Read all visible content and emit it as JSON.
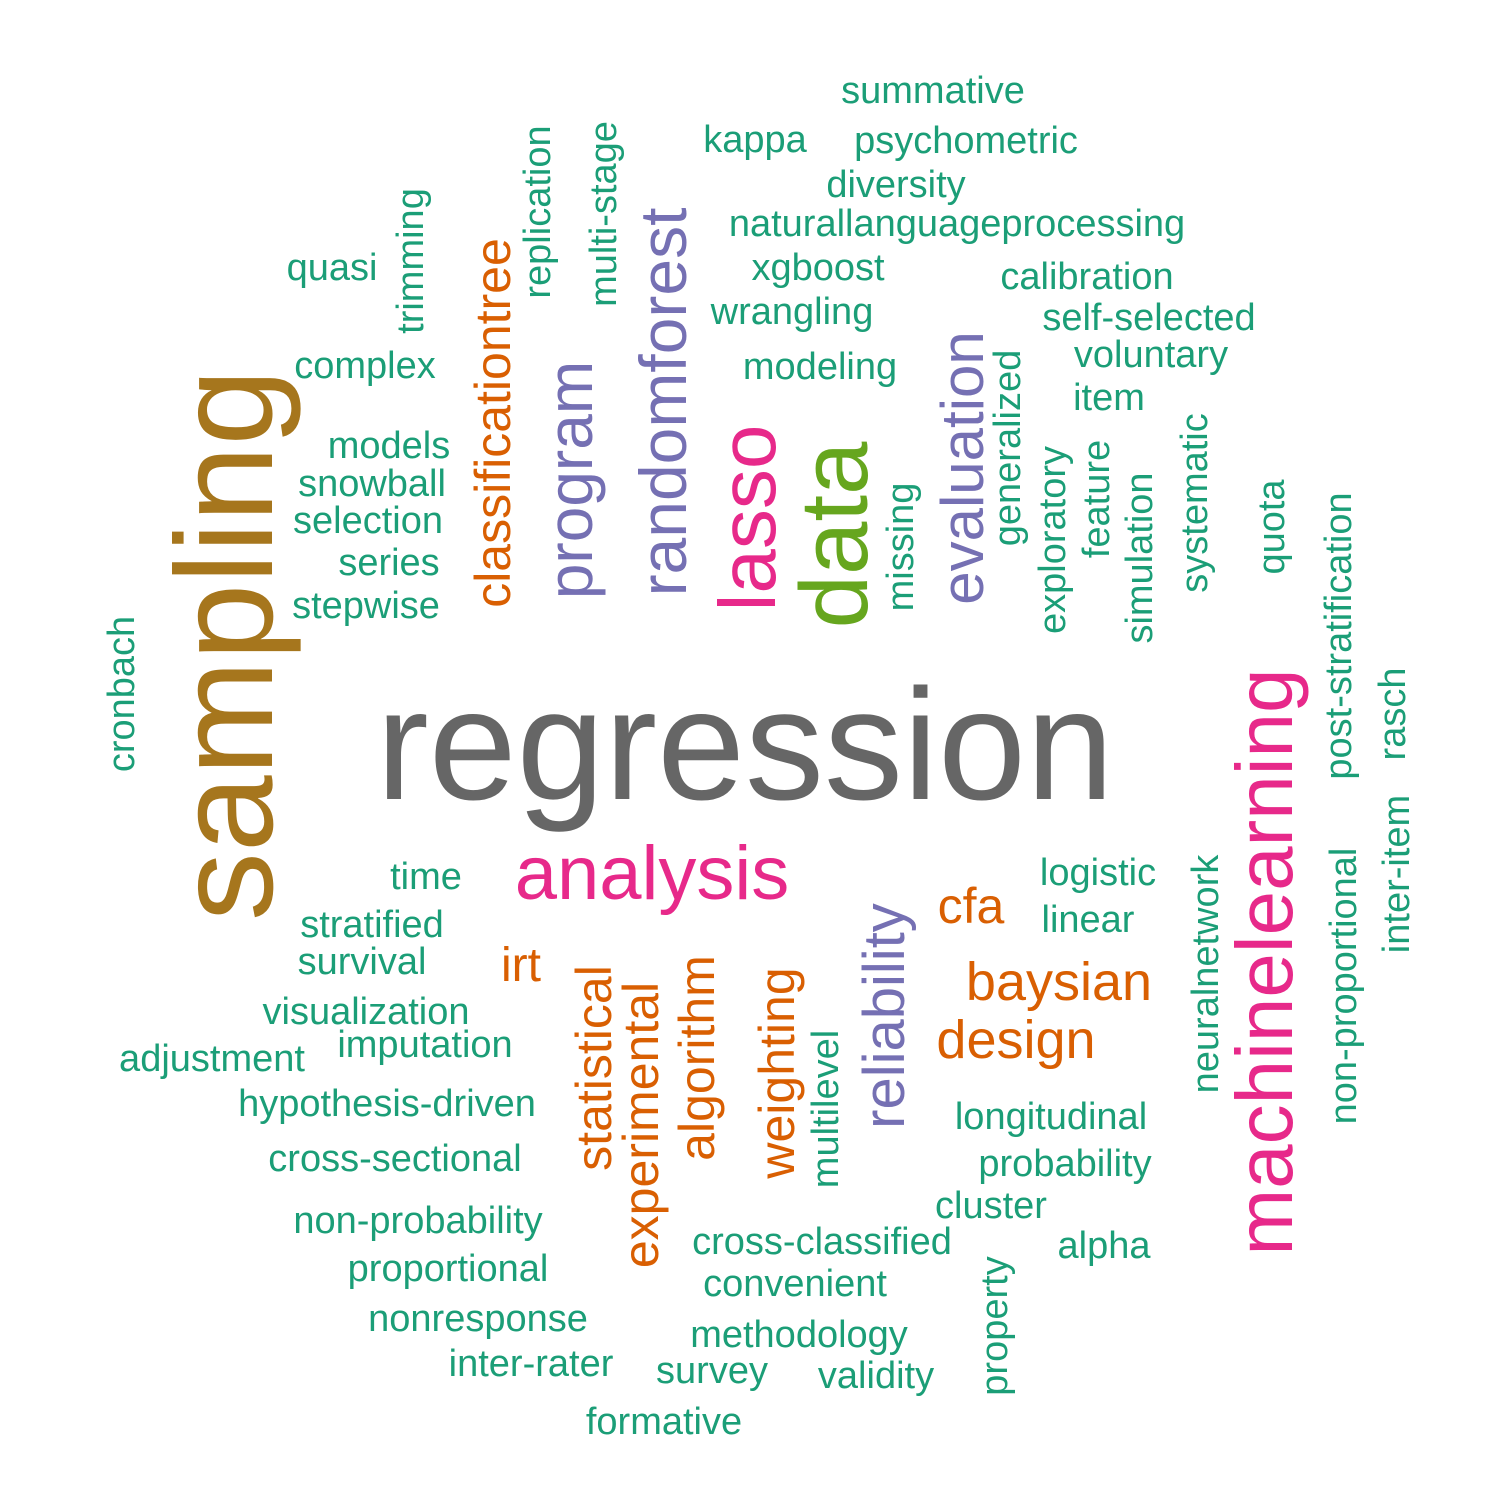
{
  "colors": {
    "teal": "#1b9e77",
    "orange": "#d95f02",
    "purple": "#7570b3",
    "pink": "#e7298a",
    "green": "#66a61e",
    "mustard": "#a6761d",
    "grey": "#666666"
  },
  "words": [
    {
      "text": "regression",
      "color": "grey"
    },
    {
      "text": "sampling",
      "color": "mustard"
    },
    {
      "text": "data",
      "color": "green"
    },
    {
      "text": "machinelearning",
      "color": "pink"
    },
    {
      "text": "lasso",
      "color": "pink"
    },
    {
      "text": "analysis",
      "color": "pink"
    },
    {
      "text": "randomforest",
      "color": "purple"
    },
    {
      "text": "program",
      "color": "purple"
    },
    {
      "text": "evaluation",
      "color": "purple"
    },
    {
      "text": "reliability",
      "color": "purple"
    },
    {
      "text": "classificationtree",
      "color": "orange"
    },
    {
      "text": "baysian",
      "color": "orange"
    },
    {
      "text": "design",
      "color": "orange"
    },
    {
      "text": "statistical",
      "color": "orange"
    },
    {
      "text": "experimental",
      "color": "orange"
    },
    {
      "text": "algorithm",
      "color": "orange"
    },
    {
      "text": "weighting",
      "color": "orange"
    },
    {
      "text": "cfa",
      "color": "orange"
    },
    {
      "text": "irt",
      "color": "orange"
    },
    {
      "text": "summative",
      "color": "teal"
    },
    {
      "text": "kappa",
      "color": "teal"
    },
    {
      "text": "psychometric",
      "color": "teal"
    },
    {
      "text": "diversity",
      "color": "teal"
    },
    {
      "text": "naturallanguageprocessing",
      "color": "teal"
    },
    {
      "text": "xgboost",
      "color": "teal"
    },
    {
      "text": "calibration",
      "color": "teal"
    },
    {
      "text": "wrangling",
      "color": "teal"
    },
    {
      "text": "self-selected",
      "color": "teal"
    },
    {
      "text": "voluntary",
      "color": "teal"
    },
    {
      "text": "modeling",
      "color": "teal"
    },
    {
      "text": "item",
      "color": "teal"
    },
    {
      "text": "quasi",
      "color": "teal"
    },
    {
      "text": "complex",
      "color": "teal"
    },
    {
      "text": "models",
      "color": "teal"
    },
    {
      "text": "snowball",
      "color": "teal"
    },
    {
      "text": "selection",
      "color": "teal"
    },
    {
      "text": "series",
      "color": "teal"
    },
    {
      "text": "stepwise",
      "color": "teal"
    },
    {
      "text": "trimming",
      "color": "teal"
    },
    {
      "text": "replication",
      "color": "teal"
    },
    {
      "text": "multi-stage",
      "color": "teal"
    },
    {
      "text": "generalized",
      "color": "teal"
    },
    {
      "text": "missing",
      "color": "teal"
    },
    {
      "text": "exploratory",
      "color": "teal"
    },
    {
      "text": "feature",
      "color": "teal"
    },
    {
      "text": "simulation",
      "color": "teal"
    },
    {
      "text": "systematic",
      "color": "teal"
    },
    {
      "text": "quota",
      "color": "teal"
    },
    {
      "text": "post-stratification",
      "color": "teal"
    },
    {
      "text": "rasch",
      "color": "teal"
    },
    {
      "text": "cronbach",
      "color": "teal"
    },
    {
      "text": "inter-item",
      "color": "teal"
    },
    {
      "text": "non-proportional",
      "color": "teal"
    },
    {
      "text": "neuralnetwork",
      "color": "teal"
    },
    {
      "text": "logistic",
      "color": "teal"
    },
    {
      "text": "linear",
      "color": "teal"
    },
    {
      "text": "time",
      "color": "teal"
    },
    {
      "text": "stratified",
      "color": "teal"
    },
    {
      "text": "survival",
      "color": "teal"
    },
    {
      "text": "visualization",
      "color": "teal"
    },
    {
      "text": "imputation",
      "color": "teal"
    },
    {
      "text": "adjustment",
      "color": "teal"
    },
    {
      "text": "hypothesis-driven",
      "color": "teal"
    },
    {
      "text": "cross-sectional",
      "color": "teal"
    },
    {
      "text": "non-probability",
      "color": "teal"
    },
    {
      "text": "proportional",
      "color": "teal"
    },
    {
      "text": "nonresponse",
      "color": "teal"
    },
    {
      "text": "inter-rater",
      "color": "teal"
    },
    {
      "text": "formative",
      "color": "teal"
    },
    {
      "text": "survey",
      "color": "teal"
    },
    {
      "text": "validity",
      "color": "teal"
    },
    {
      "text": "methodology",
      "color": "teal"
    },
    {
      "text": "convenient",
      "color": "teal"
    },
    {
      "text": "cross-classified",
      "color": "teal"
    },
    {
      "text": "multilevel",
      "color": "teal"
    },
    {
      "text": "longitudinal",
      "color": "teal"
    },
    {
      "text": "probability",
      "color": "teal"
    },
    {
      "text": "cluster",
      "color": "teal"
    },
    {
      "text": "alpha",
      "color": "teal"
    },
    {
      "text": "property",
      "color": "teal"
    }
  ]
}
